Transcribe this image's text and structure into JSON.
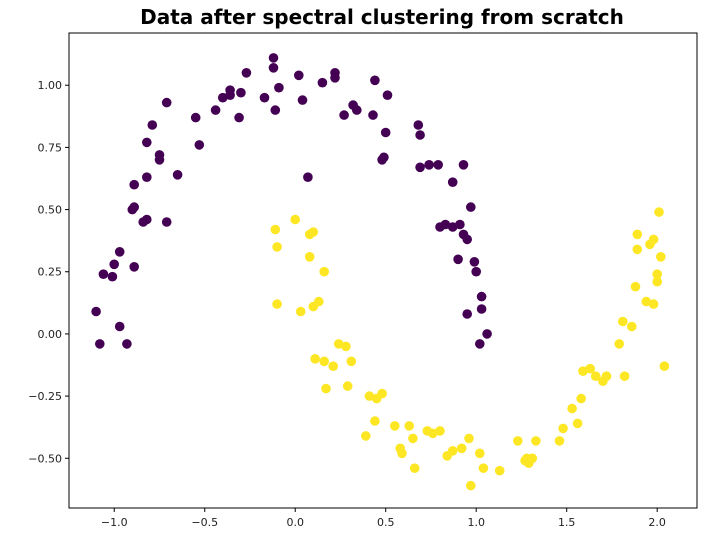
{
  "chart_data": {
    "type": "scatter",
    "title": "Data after spectral clustering from scratch",
    "xlabel": "",
    "ylabel": "",
    "xlim": [
      -1.25,
      2.22
    ],
    "ylim": [
      -0.7,
      1.21
    ],
    "xticks": [
      -1.0,
      -0.5,
      0.0,
      0.5,
      1.0,
      1.5,
      2.0
    ],
    "xtick_labels": [
      "−1.0",
      "−0.5",
      "0.0",
      "0.5",
      "1.0",
      "1.5",
      "2.0"
    ],
    "yticks": [
      -0.5,
      -0.25,
      0.0,
      0.25,
      0.5,
      0.75,
      1.0
    ],
    "ytick_labels": [
      "−0.50",
      "−0.25",
      "0.00",
      "0.25",
      "0.50",
      "0.75",
      "1.00"
    ],
    "grid": false,
    "legend": "none",
    "series": [
      {
        "color": "#440154",
        "points": [
          [
            -1.1,
            0.09
          ],
          [
            -1.08,
            -0.04
          ],
          [
            -1.06,
            0.24
          ],
          [
            -1.01,
            0.23
          ],
          [
            -1.0,
            0.28
          ],
          [
            -0.97,
            0.03
          ],
          [
            -0.97,
            0.33
          ],
          [
            -0.93,
            -0.04
          ],
          [
            -0.89,
            0.27
          ],
          [
            -0.9,
            0.5
          ],
          [
            -0.89,
            0.51
          ],
          [
            -0.89,
            0.6
          ],
          [
            -0.84,
            0.45
          ],
          [
            -0.82,
            0.46
          ],
          [
            -0.82,
            0.63
          ],
          [
            -0.82,
            0.77
          ],
          [
            -0.79,
            0.84
          ],
          [
            -0.75,
            0.7
          ],
          [
            -0.75,
            0.72
          ],
          [
            -0.71,
            0.45
          ],
          [
            -0.71,
            0.93
          ],
          [
            -0.65,
            0.64
          ],
          [
            -0.55,
            0.87
          ],
          [
            -0.53,
            0.76
          ],
          [
            -0.44,
            0.9
          ],
          [
            -0.4,
            0.95
          ],
          [
            -0.36,
            0.96
          ],
          [
            -0.36,
            0.98
          ],
          [
            -0.31,
            0.87
          ],
          [
            -0.3,
            0.97
          ],
          [
            -0.27,
            1.05
          ],
          [
            -0.17,
            0.95
          ],
          [
            -0.12,
            1.11
          ],
          [
            -0.12,
            1.07
          ],
          [
            -0.11,
            0.9
          ],
          [
            -0.09,
            0.99
          ],
          [
            0.02,
            1.04
          ],
          [
            0.04,
            0.94
          ],
          [
            0.07,
            0.63
          ],
          [
            0.15,
            1.01
          ],
          [
            0.22,
            1.05
          ],
          [
            0.22,
            1.03
          ],
          [
            0.27,
            0.88
          ],
          [
            0.32,
            0.92
          ],
          [
            0.34,
            0.9
          ],
          [
            0.43,
            0.88
          ],
          [
            0.44,
            1.02
          ],
          [
            0.48,
            0.7
          ],
          [
            0.49,
            0.71
          ],
          [
            0.5,
            0.81
          ],
          [
            0.51,
            0.96
          ],
          [
            0.68,
            0.84
          ],
          [
            0.69,
            0.8
          ],
          [
            0.69,
            0.67
          ],
          [
            0.74,
            0.68
          ],
          [
            0.79,
            0.68
          ],
          [
            0.8,
            0.43
          ],
          [
            0.83,
            0.44
          ],
          [
            0.87,
            0.43
          ],
          [
            0.87,
            0.61
          ],
          [
            0.9,
            0.3
          ],
          [
            0.91,
            0.44
          ],
          [
            0.93,
            0.4
          ],
          [
            0.95,
            0.38
          ],
          [
            0.93,
            0.68
          ],
          [
            0.95,
            0.08
          ],
          [
            0.97,
            0.51
          ],
          [
            0.99,
            0.29
          ],
          [
            1.0,
            0.25
          ],
          [
            1.02,
            -0.04
          ],
          [
            1.03,
            0.15
          ],
          [
            1.03,
            0.1
          ],
          [
            1.06,
            0.0
          ]
        ]
      },
      {
        "color": "#fde725",
        "points": [
          [
            -0.11,
            0.42
          ],
          [
            -0.1,
            0.35
          ],
          [
            -0.1,
            0.12
          ],
          [
            0.0,
            0.46
          ],
          [
            0.03,
            0.09
          ],
          [
            0.08,
            0.4
          ],
          [
            0.08,
            0.31
          ],
          [
            0.1,
            0.41
          ],
          [
            0.1,
            0.11
          ],
          [
            0.11,
            -0.1
          ],
          [
            0.13,
            0.13
          ],
          [
            0.16,
            0.25
          ],
          [
            0.16,
            -0.11
          ],
          [
            0.17,
            -0.22
          ],
          [
            0.21,
            -0.13
          ],
          [
            0.24,
            -0.04
          ],
          [
            0.28,
            -0.05
          ],
          [
            0.29,
            -0.21
          ],
          [
            0.31,
            -0.11
          ],
          [
            0.39,
            -0.41
          ],
          [
            0.41,
            -0.25
          ],
          [
            0.44,
            -0.35
          ],
          [
            0.45,
            -0.26
          ],
          [
            0.48,
            -0.24
          ],
          [
            0.55,
            -0.37
          ],
          [
            0.58,
            -0.46
          ],
          [
            0.59,
            -0.48
          ],
          [
            0.63,
            -0.37
          ],
          [
            0.65,
            -0.42
          ],
          [
            0.66,
            -0.54
          ],
          [
            0.73,
            -0.39
          ],
          [
            0.76,
            -0.4
          ],
          [
            0.8,
            -0.39
          ],
          [
            0.84,
            -0.49
          ],
          [
            0.87,
            -0.47
          ],
          [
            0.92,
            -0.46
          ],
          [
            0.96,
            -0.42
          ],
          [
            0.97,
            -0.61
          ],
          [
            1.02,
            -0.48
          ],
          [
            1.04,
            -0.54
          ],
          [
            1.13,
            -0.55
          ],
          [
            1.23,
            -0.43
          ],
          [
            1.27,
            -0.51
          ],
          [
            1.28,
            -0.5
          ],
          [
            1.29,
            -0.52
          ],
          [
            1.31,
            -0.5
          ],
          [
            1.33,
            -0.43
          ],
          [
            1.46,
            -0.43
          ],
          [
            1.48,
            -0.38
          ],
          [
            1.53,
            -0.3
          ],
          [
            1.56,
            -0.36
          ],
          [
            1.58,
            -0.26
          ],
          [
            1.59,
            -0.15
          ],
          [
            1.63,
            -0.14
          ],
          [
            1.66,
            -0.17
          ],
          [
            1.7,
            -0.19
          ],
          [
            1.72,
            -0.17
          ],
          [
            1.79,
            -0.04
          ],
          [
            1.81,
            0.05
          ],
          [
            1.82,
            -0.17
          ],
          [
            1.86,
            0.03
          ],
          [
            1.88,
            0.19
          ],
          [
            1.89,
            0.34
          ],
          [
            1.89,
            0.4
          ],
          [
            1.94,
            0.13
          ],
          [
            1.96,
            0.36
          ],
          [
            1.98,
            0.12
          ],
          [
            1.98,
            0.38
          ],
          [
            2.0,
            0.24
          ],
          [
            2.0,
            0.21
          ],
          [
            2.01,
            0.49
          ],
          [
            2.02,
            0.31
          ],
          [
            2.04,
            -0.13
          ]
        ]
      }
    ]
  }
}
